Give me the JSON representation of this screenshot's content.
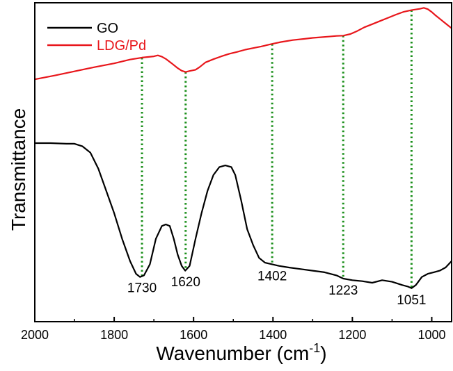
{
  "chart_data": {
    "type": "line",
    "xlabel": "Wavenumber (cm",
    "xlabel_sup": "-1",
    "xlabel_close": ")",
    "ylabel": "Transmittance",
    "xlim": [
      2000,
      950
    ],
    "x_reversed": true,
    "x_ticks": [
      2000,
      1800,
      1600,
      1400,
      1200,
      1000
    ],
    "y_ticks_shown": false,
    "grid": false,
    "legend_position": "top-left",
    "series": [
      {
        "name": "GO",
        "color": "#000000",
        "points": [
          [
            2000,
            30
          ],
          [
            1960,
            30
          ],
          [
            1920,
            30.2
          ],
          [
            1900,
            30.2
          ],
          [
            1880,
            31
          ],
          [
            1860,
            33
          ],
          [
            1840,
            38
          ],
          [
            1820,
            45
          ],
          [
            1800,
            52
          ],
          [
            1780,
            60
          ],
          [
            1760,
            67
          ],
          [
            1745,
            71
          ],
          [
            1735,
            72
          ],
          [
            1725,
            71.5
          ],
          [
            1710,
            68
          ],
          [
            1695,
            60
          ],
          [
            1680,
            56
          ],
          [
            1670,
            55.5
          ],
          [
            1660,
            56
          ],
          [
            1650,
            60
          ],
          [
            1640,
            65
          ],
          [
            1630,
            68.5
          ],
          [
            1621,
            70
          ],
          [
            1610,
            68.5
          ],
          [
            1595,
            60
          ],
          [
            1580,
            52
          ],
          [
            1565,
            45
          ],
          [
            1550,
            40
          ],
          [
            1535,
            37.5
          ],
          [
            1520,
            37
          ],
          [
            1505,
            37.5
          ],
          [
            1495,
            40
          ],
          [
            1480,
            48
          ],
          [
            1465,
            57
          ],
          [
            1450,
            62
          ],
          [
            1435,
            66
          ],
          [
            1420,
            67.5
          ],
          [
            1402,
            68
          ],
          [
            1385,
            68.5
          ],
          [
            1360,
            69
          ],
          [
            1330,
            69.5
          ],
          [
            1300,
            70
          ],
          [
            1270,
            70.5
          ],
          [
            1240,
            71.5
          ],
          [
            1223,
            72.5
          ],
          [
            1200,
            73
          ],
          [
            1175,
            73.3
          ],
          [
            1150,
            73.8
          ],
          [
            1125,
            73
          ],
          [
            1100,
            73.5
          ],
          [
            1075,
            74.5
          ],
          [
            1060,
            75
          ],
          [
            1051,
            75.5
          ],
          [
            1040,
            74.5
          ],
          [
            1025,
            72
          ],
          [
            1010,
            71
          ],
          [
            995,
            70.5
          ],
          [
            980,
            70
          ],
          [
            965,
            69
          ],
          [
            950,
            67
          ]
        ]
      },
      {
        "name": "LDG/Pd",
        "color": "#e8161b",
        "points": [
          [
            2000,
            10
          ],
          [
            1950,
            8.8
          ],
          [
            1900,
            7.5
          ],
          [
            1850,
            6.2
          ],
          [
            1800,
            5
          ],
          [
            1760,
            3.8
          ],
          [
            1730,
            3.2
          ],
          [
            1700,
            2.8
          ],
          [
            1690,
            2.5
          ],
          [
            1680,
            2.9
          ],
          [
            1670,
            3.6
          ],
          [
            1655,
            5
          ],
          [
            1640,
            6.5
          ],
          [
            1630,
            7.3
          ],
          [
            1620,
            7.7
          ],
          [
            1610,
            7.4
          ],
          [
            1595,
            7
          ],
          [
            1585,
            6.2
          ],
          [
            1570,
            4.7
          ],
          [
            1550,
            3.7
          ],
          [
            1530,
            2.8
          ],
          [
            1510,
            2
          ],
          [
            1490,
            1.4
          ],
          [
            1470,
            0.7
          ],
          [
            1450,
            0.2
          ],
          [
            1430,
            -0.3
          ],
          [
            1402,
            -1.1
          ],
          [
            1380,
            -1.7
          ],
          [
            1350,
            -2.3
          ],
          [
            1320,
            -2.7
          ],
          [
            1300,
            -3
          ],
          [
            1280,
            -3.2
          ],
          [
            1260,
            -3.4
          ],
          [
            1240,
            -3.6
          ],
          [
            1223,
            -3.7
          ],
          [
            1205,
            -4.2
          ],
          [
            1190,
            -5
          ],
          [
            1170,
            -6.3
          ],
          [
            1150,
            -7.3
          ],
          [
            1130,
            -8.3
          ],
          [
            1110,
            -9.3
          ],
          [
            1090,
            -10.3
          ],
          [
            1070,
            -11.2
          ],
          [
            1051,
            -11.7
          ],
          [
            1040,
            -11.9
          ],
          [
            1030,
            -12.1
          ],
          [
            1020,
            -12.4
          ],
          [
            1010,
            -12
          ],
          [
            1000,
            -11.1
          ],
          [
            990,
            -10
          ],
          [
            975,
            -8.5
          ],
          [
            960,
            -7
          ],
          [
            950,
            -6
          ]
        ]
      }
    ],
    "guide_lines": {
      "color": "#1a8f1a",
      "style": "dotted",
      "x": [
        1730,
        1620,
        1402,
        1223,
        1051
      ]
    },
    "annotations": [
      {
        "text": "1730",
        "x": 1730
      },
      {
        "text": "1620",
        "x": 1620
      },
      {
        "text": "1402",
        "x": 1402
      },
      {
        "text": "1223",
        "x": 1223
      },
      {
        "text": "1051",
        "x": 1051
      }
    ]
  }
}
